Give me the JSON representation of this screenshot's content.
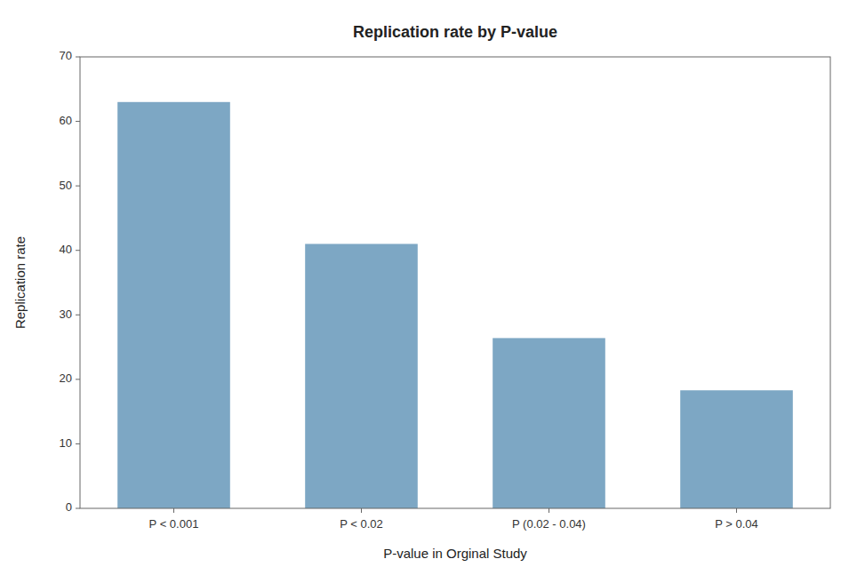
{
  "chart_data": {
    "type": "bar",
    "title": "Replication rate by P-value",
    "xlabel": "P-value in Orginal Study",
    "ylabel": "Replication rate",
    "categories": [
      "P < 0.001",
      "P < 0.02",
      "P (0.02 - 0.04)",
      "P > 0.04"
    ],
    "values": [
      63,
      41,
      26.4,
      18.3
    ],
    "color": "#7da7c4",
    "ylim": [
      0,
      70
    ],
    "yticks": [
      0,
      10,
      20,
      30,
      40,
      50,
      60,
      70
    ],
    "grid": false
  }
}
